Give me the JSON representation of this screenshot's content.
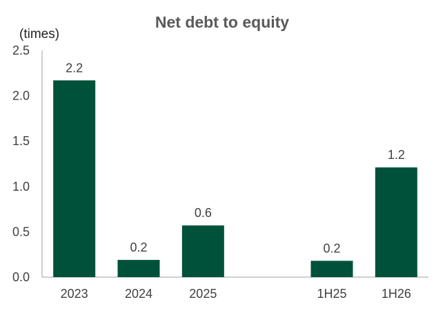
{
  "chart_data": {
    "type": "bar",
    "title": "Net debt to equity",
    "ylabel": "(times)",
    "xlabel": "",
    "ylim": [
      0,
      2.5
    ],
    "yticks": [
      "0.0",
      "0.5",
      "1.0",
      "1.5",
      "2.0",
      "2.5"
    ],
    "categories": [
      "2023",
      "2024",
      "2025",
      "",
      "1H25",
      "1H26"
    ],
    "values": [
      2.17,
      0.19,
      0.57,
      null,
      0.18,
      1.21
    ],
    "data_labels": [
      "2.2",
      "0.2",
      "0.6",
      "",
      "0.2",
      "1.2"
    ],
    "bar_color": "#00513A",
    "grid": false,
    "legend": "none"
  }
}
